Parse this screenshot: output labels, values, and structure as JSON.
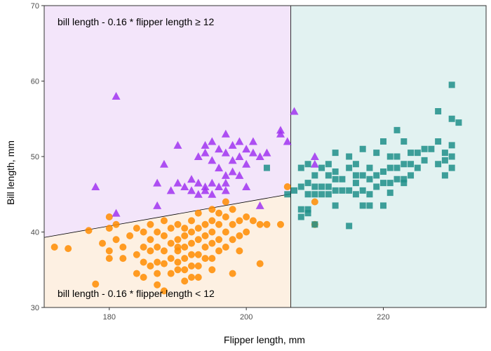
{
  "chart_data": {
    "type": "scatter",
    "xlabel": "Flipper length, mm",
    "ylabel": "Bill length, mm",
    "xlim": [
      170.5,
      235
    ],
    "ylim": [
      30,
      70
    ],
    "x_ticks": [
      180,
      200,
      220
    ],
    "y_ticks": [
      30,
      40,
      50,
      60,
      70
    ],
    "x_tick_labels": [
      "180",
      "200",
      "220"
    ],
    "y_tick_labels": [
      "30",
      "40",
      "50",
      "60",
      "70"
    ],
    "grid": false,
    "legend": "none",
    "regions": [
      {
        "id": "upper-left",
        "label": "bill length - 0.16 * flipper length ≥ 12",
        "color": "#f3e5fa"
      },
      {
        "id": "lower-left",
        "label": "bill length - 0.16 * flipper length < 12",
        "color": "#fdf0e2"
      },
      {
        "id": "right",
        "label": "",
        "color": "#e2f2f1"
      }
    ],
    "vertical_split_x": 206.5,
    "diagonal_line": {
      "intercept": 12,
      "slope": 0.16
    },
    "series": [
      {
        "marker": "circle",
        "color": "#ff8c00",
        "points": [
          [
            172,
            38
          ],
          [
            174,
            37.8
          ],
          [
            177,
            40.2
          ],
          [
            178,
            33.1
          ],
          [
            179,
            38.5
          ],
          [
            180,
            42
          ],
          [
            180,
            40.5
          ],
          [
            180,
            37.5
          ],
          [
            180,
            36.5
          ],
          [
            181,
            39
          ],
          [
            181,
            41
          ],
          [
            182,
            38
          ],
          [
            182,
            36.5
          ],
          [
            183,
            39.5
          ],
          [
            184,
            37
          ],
          [
            184,
            40.5
          ],
          [
            184,
            34.5
          ],
          [
            185,
            40
          ],
          [
            185,
            38
          ],
          [
            185,
            36
          ],
          [
            185,
            34
          ],
          [
            186,
            41
          ],
          [
            186,
            39
          ],
          [
            186,
            37.5
          ],
          [
            186,
            35.5
          ],
          [
            187,
            40
          ],
          [
            187,
            38
          ],
          [
            187,
            36
          ],
          [
            187,
            34.5
          ],
          [
            187,
            33
          ],
          [
            188,
            41.5
          ],
          [
            188,
            39.5
          ],
          [
            188,
            37.5
          ],
          [
            188,
            35.8
          ],
          [
            188,
            32.2
          ],
          [
            189,
            40.5
          ],
          [
            189,
            38.5
          ],
          [
            189,
            36.5
          ],
          [
            189,
            34.5
          ],
          [
            190,
            41
          ],
          [
            190,
            39
          ],
          [
            190,
            37.5
          ],
          [
            190,
            36
          ],
          [
            190,
            35
          ],
          [
            190,
            38
          ],
          [
            191,
            40.5
          ],
          [
            191,
            39.5
          ],
          [
            191,
            38
          ],
          [
            191,
            36.5
          ],
          [
            191,
            35
          ],
          [
            191,
            33.5
          ],
          [
            192,
            41.5
          ],
          [
            192,
            40
          ],
          [
            192,
            38.5
          ],
          [
            192,
            37
          ],
          [
            192,
            35.5
          ],
          [
            192,
            34
          ],
          [
            193,
            42.5
          ],
          [
            193,
            40.5
          ],
          [
            193,
            39
          ],
          [
            193,
            37
          ],
          [
            193,
            35.5
          ],
          [
            193,
            34
          ],
          [
            194,
            41
          ],
          [
            194,
            39.5
          ],
          [
            194,
            38
          ],
          [
            194,
            36.5
          ],
          [
            195,
            43
          ],
          [
            195,
            41.5
          ],
          [
            195,
            40
          ],
          [
            195,
            38.5
          ],
          [
            195,
            36.5
          ],
          [
            195,
            35
          ],
          [
            196,
            42.5
          ],
          [
            196,
            41
          ],
          [
            196,
            39
          ],
          [
            196,
            37.5
          ],
          [
            197,
            44
          ],
          [
            197,
            42
          ],
          [
            197,
            40
          ],
          [
            197,
            38
          ],
          [
            198,
            43
          ],
          [
            198,
            41
          ],
          [
            198,
            39
          ],
          [
            198,
            34.5
          ],
          [
            199,
            41.5
          ],
          [
            199,
            39.5
          ],
          [
            199,
            37.5
          ],
          [
            200,
            42
          ],
          [
            200,
            40
          ],
          [
            201,
            41.5
          ],
          [
            202,
            41
          ],
          [
            202,
            35.8
          ],
          [
            203,
            41
          ],
          [
            205,
            41
          ],
          [
            206,
            46
          ],
          [
            210,
            41
          ],
          [
            210,
            44
          ]
        ]
      },
      {
        "marker": "triangle",
        "color": "#a034f0",
        "points": [
          [
            178,
            46
          ],
          [
            181,
            58
          ],
          [
            181,
            42.5
          ],
          [
            187,
            46.5
          ],
          [
            187,
            43.5
          ],
          [
            188,
            49
          ],
          [
            189,
            45.5
          ],
          [
            190,
            51.5
          ],
          [
            190,
            46.5
          ],
          [
            191,
            46
          ],
          [
            192,
            47
          ],
          [
            192,
            45.5
          ],
          [
            193,
            50
          ],
          [
            193,
            46.5
          ],
          [
            193,
            45
          ],
          [
            194,
            51.5
          ],
          [
            194,
            50.5
          ],
          [
            194,
            46
          ],
          [
            194,
            45.5
          ],
          [
            195,
            52
          ],
          [
            195,
            49.5
          ],
          [
            195,
            46.5
          ],
          [
            195,
            45
          ],
          [
            196,
            51
          ],
          [
            196,
            48.5
          ],
          [
            196,
            46
          ],
          [
            197,
            53
          ],
          [
            197,
            50.5
          ],
          [
            197,
            47.5
          ],
          [
            197,
            46.5
          ],
          [
            197,
            45.5
          ],
          [
            198,
            51.5
          ],
          [
            198,
            49.5
          ],
          [
            198,
            48
          ],
          [
            199,
            52
          ],
          [
            199,
            50
          ],
          [
            199,
            47.5
          ],
          [
            200,
            51
          ],
          [
            200,
            49
          ],
          [
            200,
            46
          ],
          [
            201,
            52
          ],
          [
            201,
            50.5
          ],
          [
            202,
            50
          ],
          [
            202,
            43.5
          ],
          [
            203,
            50.5
          ],
          [
            205,
            53.5
          ],
          [
            205,
            53
          ],
          [
            206,
            52
          ],
          [
            207,
            56
          ],
          [
            210,
            50
          ],
          [
            210,
            49
          ]
        ]
      },
      {
        "marker": "square",
        "color": "#1f8f8a",
        "points": [
          [
            203,
            48.5
          ],
          [
            206,
            45
          ],
          [
            207,
            45.5
          ],
          [
            208,
            48.5
          ],
          [
            208,
            46
          ],
          [
            208,
            43
          ],
          [
            208,
            42
          ],
          [
            209,
            49
          ],
          [
            209,
            46.5
          ],
          [
            209,
            45
          ],
          [
            209,
            43
          ],
          [
            209,
            42.5
          ],
          [
            210,
            47.5
          ],
          [
            210,
            46
          ],
          [
            210,
            45
          ],
          [
            210,
            41
          ],
          [
            211,
            48.5
          ],
          [
            211,
            46
          ],
          [
            211,
            45
          ],
          [
            212,
            49
          ],
          [
            212,
            47.5
          ],
          [
            212,
            46
          ],
          [
            212,
            45
          ],
          [
            213,
            50.5
          ],
          [
            213,
            48
          ],
          [
            213,
            47
          ],
          [
            213,
            45.5
          ],
          [
            213,
            43.5
          ],
          [
            214,
            47
          ],
          [
            214,
            45.5
          ],
          [
            215,
            50
          ],
          [
            215,
            48.5
          ],
          [
            215,
            45.5
          ],
          [
            215,
            40.8
          ],
          [
            216,
            49
          ],
          [
            216,
            47.5
          ],
          [
            216,
            46.5
          ],
          [
            216,
            45
          ],
          [
            217,
            51
          ],
          [
            217,
            47.5
          ],
          [
            217,
            45.5
          ],
          [
            217,
            43.5
          ],
          [
            218,
            48.5
          ],
          [
            218,
            47
          ],
          [
            218,
            45
          ],
          [
            218,
            43.5
          ],
          [
            219,
            50.5
          ],
          [
            219,
            47.5
          ],
          [
            219,
            46
          ],
          [
            220,
            52
          ],
          [
            220,
            48
          ],
          [
            220,
            46.5
          ],
          [
            220,
            43.5
          ],
          [
            221,
            50
          ],
          [
            221,
            48.5
          ],
          [
            221,
            46.5
          ],
          [
            221,
            45.2
          ],
          [
            222,
            53.5
          ],
          [
            222,
            50
          ],
          [
            222,
            48.5
          ],
          [
            222,
            47
          ],
          [
            223,
            52
          ],
          [
            223,
            49
          ],
          [
            223,
            47
          ],
          [
            223,
            46.5
          ],
          [
            224,
            50.5
          ],
          [
            224,
            49
          ],
          [
            224,
            47.5
          ],
          [
            225,
            50.5
          ],
          [
            225,
            48.5
          ],
          [
            226,
            51
          ],
          [
            226,
            49.5
          ],
          [
            227,
            51
          ],
          [
            228,
            56
          ],
          [
            228,
            52
          ],
          [
            228,
            49
          ],
          [
            229,
            50.5
          ],
          [
            229,
            49.5
          ],
          [
            229,
            47.5
          ],
          [
            230,
            59.5
          ],
          [
            230,
            55
          ],
          [
            230,
            51.5
          ],
          [
            230,
            50
          ],
          [
            230,
            48.5
          ],
          [
            231,
            54.5
          ]
        ]
      }
    ]
  }
}
